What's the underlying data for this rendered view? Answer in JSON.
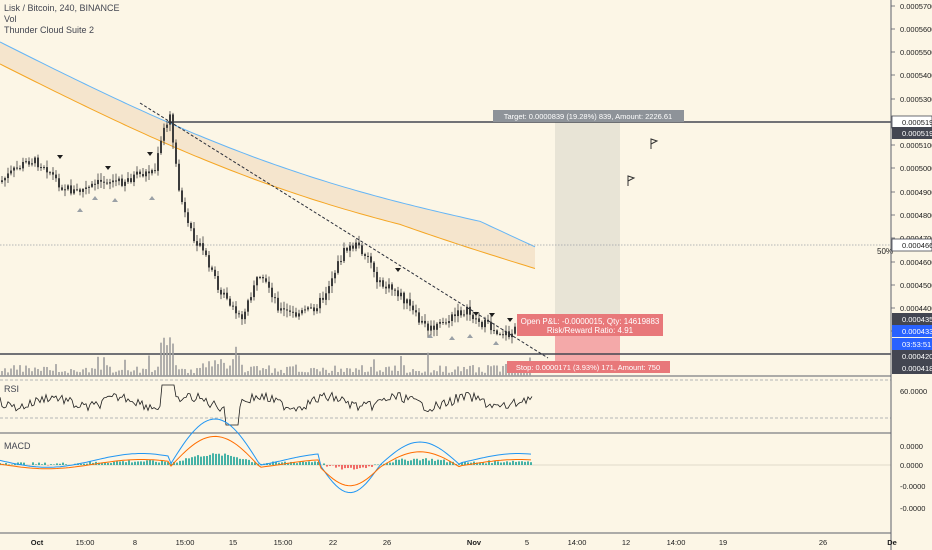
{
  "header": {
    "title": "Lisk / Bitcoin, 240, BINANCE",
    "volume_label": "Vol",
    "indicator_label": "Thunder Cloud Suite 2"
  },
  "panes": {
    "rsi_label": "RSI",
    "macd_label": "MACD"
  },
  "colors": {
    "background": "#fcf6e6",
    "up": "#26a69a",
    "down": "#ef5350",
    "candle": "#3b3b3b",
    "ema_fast": "#f5a623",
    "ema_slow": "#64b5f6",
    "target_zone": "#e8e4d6",
    "stop_zone": "#f4a9a9",
    "target_tag": "#8e9399",
    "stop_tag": "#e8787a"
  },
  "chart_data": {
    "type": "candlestick",
    "title": "Lisk / Bitcoin, 240, BINANCE",
    "price_axis": {
      "ticks": [
        "0.0005700",
        "0.0005600",
        "0.0005500",
        "0.0005400",
        "0.0005300",
        "0.0005100",
        "0.0005000",
        "0.0004900",
        "0.0004800",
        "0.0004700",
        "0.0004600",
        "0.0004500",
        "0.0004400",
        "0.0004300"
      ],
      "ylim": [
        0.000417,
        0.000573
      ]
    },
    "x_axis": {
      "ticks": [
        "Oct",
        "15:00",
        "8",
        "15:00",
        "15",
        "15:00",
        "22",
        "26",
        "Nov",
        "5",
        "14:00",
        "12",
        "14:00",
        "19",
        "26",
        "De"
      ]
    },
    "price_labels": [
      {
        "value": "0.0005195",
        "kind": "line"
      },
      {
        "value": "0.0005191",
        "kind": "dark"
      },
      {
        "value": "0.0004666",
        "kind": "line"
      },
      {
        "value": "0.0004352",
        "kind": "dark"
      },
      {
        "value": "0.0004337",
        "kind": "blue"
      },
      {
        "value": "03:53:51",
        "kind": "blue"
      },
      {
        "value": "0.0004204",
        "kind": "dark"
      },
      {
        "value": "0.0004181",
        "kind": "dark"
      }
    ],
    "fib_label": "50%",
    "position": {
      "target_text": "Target: 0.0000839 (19.28%) 839, Amount: 2226.61",
      "open_pl_text": "Open P&L: -0.0000015, Qty: 14619883",
      "risk_reward_text": "Risk/Reward Ratio: 4.91",
      "stop_text": "Stop: 0.0000171 (3.93%) 171, Amount: 750",
      "entry": 0.0004352,
      "target": 0.0005191,
      "stop": 0.0004181
    },
    "trendline": [
      [
        0.000527,
        0
      ],
      [
        0.000418,
        1
      ]
    ],
    "horizontal_levels": [
      0.0005195,
      0.0004666,
      0.0004204
    ],
    "rsi": {
      "ticks": [
        "60.0000"
      ]
    },
    "macd": {
      "ticks": [
        "0.0000",
        "0.0000",
        "-0.0000",
        "-0.0000"
      ]
    }
  }
}
